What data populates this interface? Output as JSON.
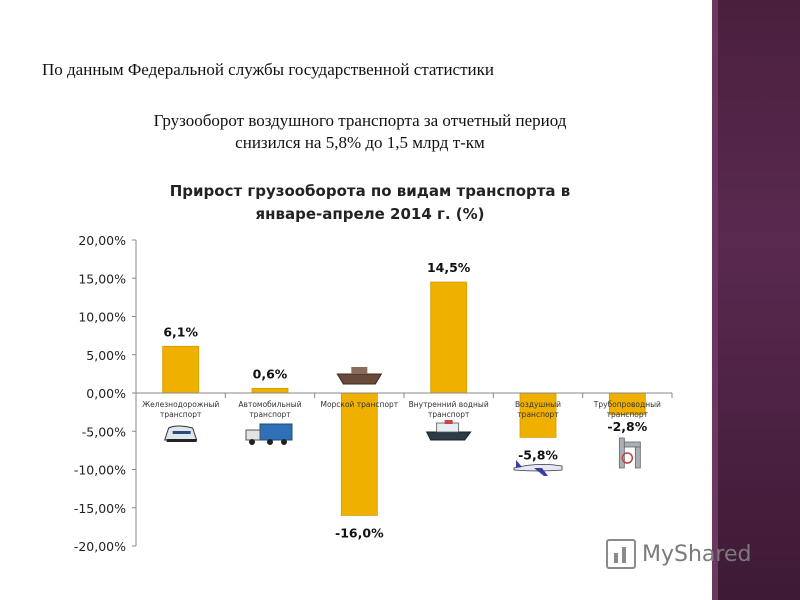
{
  "header": {
    "source": "По данным Федеральной службы государственной статистики"
  },
  "note": {
    "line1": "Грузооборот воздушного транспорта за отчетный период",
    "line2": "снизился на 5,8% до 1,5 млрд т-км"
  },
  "watermark": {
    "text": "MyShared"
  },
  "colors": {
    "bar": "#f0b000",
    "bar_stroke": "#d49a00",
    "side_panel": "#4a1f3d"
  },
  "chart_data": {
    "type": "bar",
    "title_lines": [
      "Прирост грузооборота по видам транспорта в",
      "январе-апреле 2014 г. (%)"
    ],
    "ylim": [
      -20,
      20
    ],
    "yticks": [
      20,
      15,
      10,
      5,
      0,
      -5,
      -10,
      -15,
      -20
    ],
    "ytick_labels": [
      "20,00%",
      "15,00%",
      "10,00%",
      "5,00%",
      "0,00%",
      "-5,00%",
      "-10,00%",
      "-15,00%",
      "-20,00%"
    ],
    "categories": [
      [
        "Железнодорожный",
        "транспорт"
      ],
      [
        "Автомобильный",
        "транспорт"
      ],
      [
        "Морской транспорт"
      ],
      [
        "Внутренний водный",
        "транспорт"
      ],
      [
        "Воздушный",
        "транспорт"
      ],
      [
        "Трубопроводный",
        "транспорт"
      ]
    ],
    "values": [
      6.1,
      0.6,
      -16.0,
      14.5,
      -5.8,
      -2.8
    ],
    "data_labels": [
      "6,1%",
      "0,6%",
      "-16,0%",
      "14,5%",
      "-5,8%",
      "-2,8%"
    ],
    "icons": [
      "train-icon",
      "truck-icon",
      "ship-icon",
      "river-ship-icon",
      "airplane-icon",
      "pipeline-icon"
    ]
  }
}
